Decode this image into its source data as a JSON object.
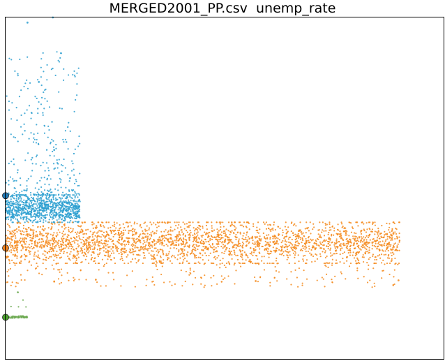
{
  "chart_data": {
    "type": "scatter",
    "title": "MERGED2001_PP.csv  unemp_rate",
    "xlabel": "",
    "ylabel": "",
    "grid": false,
    "legend": "none",
    "axes_ticks_shown": false,
    "xlim": [
      0,
      100
    ],
    "ylim": [
      0,
      100
    ],
    "series": [
      {
        "color": "#2b9fd0",
        "cluster": {
          "x": [
            0,
            17
          ],
          "y_core": [
            40,
            48
          ],
          "y_tail": [
            48,
            90
          ]
        },
        "points_sample": [
          [
            1.2,
            46.1
          ],
          [
            3.4,
            44.2
          ],
          [
            5.1,
            42.8
          ],
          [
            7.6,
            45.5
          ],
          [
            9.8,
            43.9
          ],
          [
            12.3,
            47.2
          ],
          [
            14.7,
            44.6
          ],
          [
            16.2,
            42.1
          ],
          [
            2.8,
            55.3
          ],
          [
            6.1,
            58.9
          ],
          [
            9.4,
            61.2
          ],
          [
            11.8,
            57.4
          ],
          [
            13.9,
            63.5
          ],
          [
            15.6,
            60.1
          ],
          [
            4.4,
            66.8
          ],
          [
            10.6,
            69.4
          ],
          [
            14.2,
            67.9
          ],
          [
            5.9,
            72.1
          ],
          [
            8.3,
            76.5
          ]
        ],
        "outliers": [
          [
            5.0,
            98.5
          ],
          [
            10.8,
            100.0
          ],
          [
            7.6,
            81.1
          ],
          [
            11.1,
            61.2
          ]
        ],
        "marker": {
          "x": 0,
          "y": 47.8,
          "color": "#1f77b4"
        }
      },
      {
        "color": "#f5891c",
        "cluster": {
          "x": [
            0,
            90
          ],
          "y_core": [
            28,
            40
          ],
          "y_tail": [
            21,
            40
          ]
        },
        "points_sample": [
          [
            2.1,
            34.2
          ],
          [
            8.4,
            36.1
          ],
          [
            15.3,
            32.8
          ],
          [
            22.7,
            35.5
          ],
          [
            29.6,
            33.1
          ],
          [
            37.2,
            37.4
          ],
          [
            44.8,
            31.9
          ],
          [
            51.3,
            34.6
          ],
          [
            58.9,
            36.8
          ],
          [
            66.4,
            32.4
          ],
          [
            73.8,
            35.1
          ],
          [
            80.2,
            33.7
          ],
          [
            86.5,
            36.3
          ],
          [
            11.6,
            27.9
          ],
          [
            33.4,
            29.3
          ],
          [
            55.7,
            28.6
          ],
          [
            77.9,
            29.8
          ]
        ],
        "outliers": [
          [
            11.1,
            22.7
          ],
          [
            20.6,
            23.2
          ],
          [
            89.7,
            23.0
          ],
          [
            57.1,
            22.8
          ]
        ],
        "marker": {
          "x": 0,
          "y": 32.5,
          "color": "#f0801a"
        }
      },
      {
        "color": "#6aa84f",
        "cluster": {
          "x": [
            0,
            5
          ],
          "y_core": [
            11.9,
            12.6
          ],
          "y_tail": [
            11.9,
            19.5
          ]
        },
        "points_sample": [
          [
            0.3,
            12.2
          ],
          [
            1.1,
            12.0
          ],
          [
            2.0,
            12.3
          ],
          [
            2.9,
            12.1
          ],
          [
            3.8,
            12.4
          ],
          [
            4.6,
            12.2
          ]
        ],
        "outliers": [
          [
            2.8,
            19.5
          ],
          [
            4.9,
            12.2
          ]
        ],
        "marker": {
          "x": 0,
          "y": 12.2,
          "color": "#4aa02c"
        }
      }
    ]
  }
}
